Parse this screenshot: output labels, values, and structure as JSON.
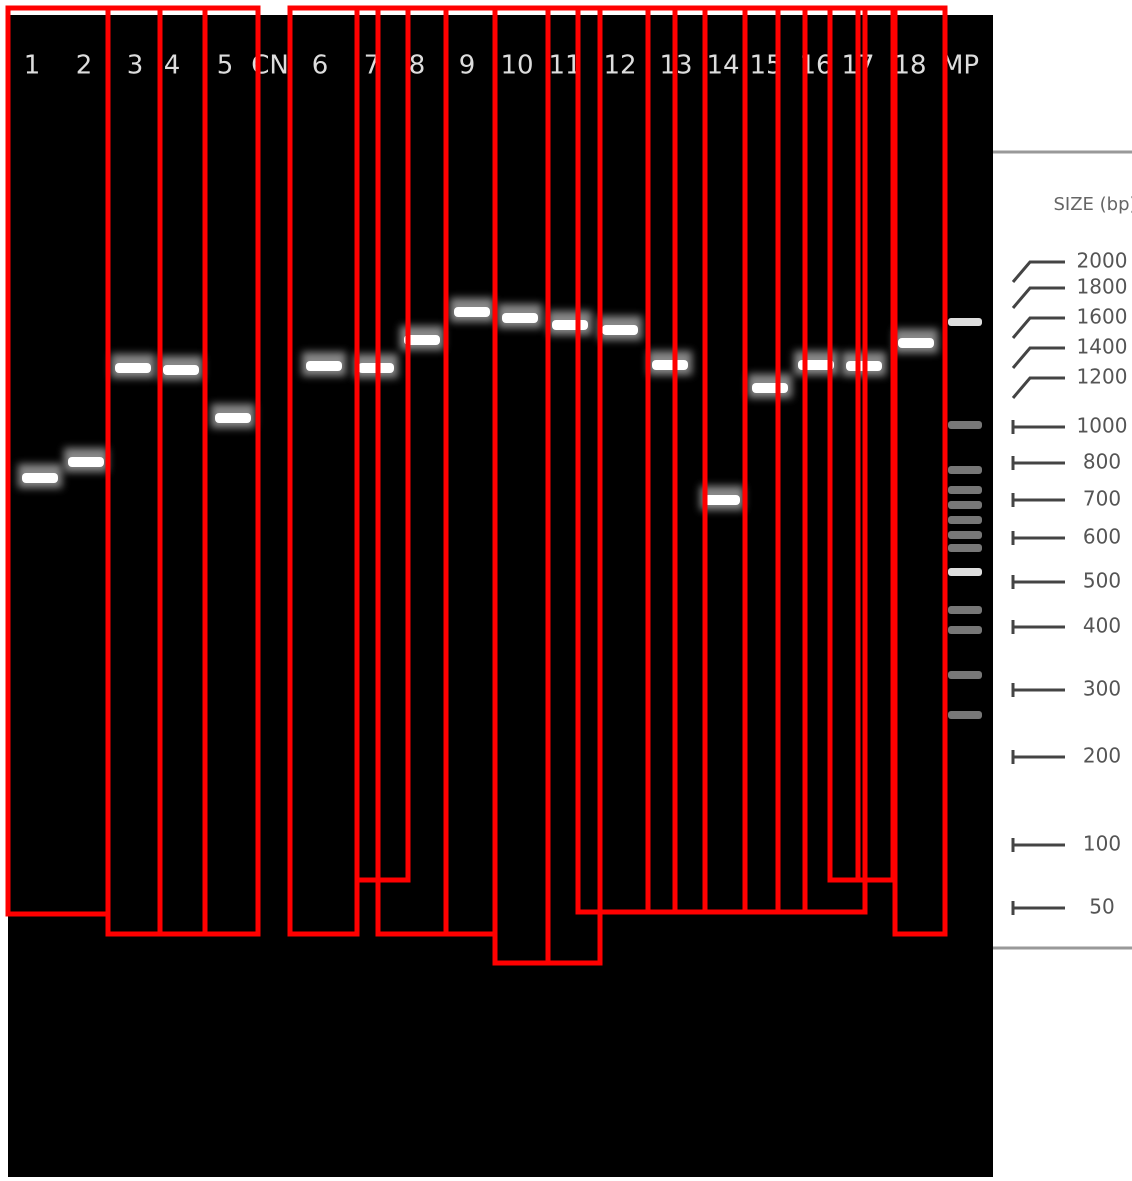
{
  "gel": {
    "lanes": [
      "1",
      "2",
      "3",
      "4",
      "5",
      "CN",
      "6",
      "7",
      "8",
      "9",
      "10",
      "11",
      "12",
      "13",
      "14",
      "15",
      "16",
      "17",
      "18",
      "MP"
    ]
  },
  "legend": {
    "title": "SIZE (bp)",
    "sizes": [
      "2000",
      "1800",
      "1600",
      "1400",
      "1200",
      "1000",
      "800",
      "700",
      "600",
      "500",
      "400",
      "300",
      "200",
      "100",
      "50"
    ]
  }
}
